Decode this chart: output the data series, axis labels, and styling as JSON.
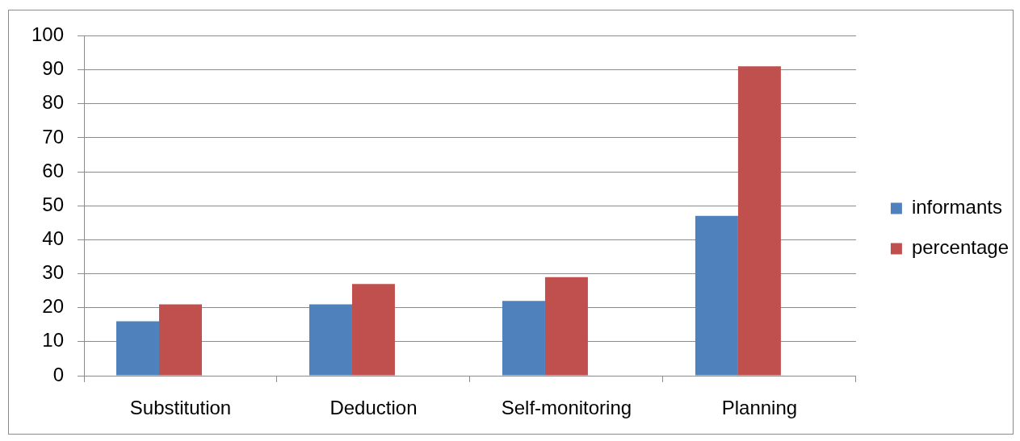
{
  "chart_data": {
    "type": "bar",
    "categories": [
      "Substitution",
      "Deduction",
      "Self-monitoring",
      "Planning"
    ],
    "series": [
      {
        "name": "informants",
        "color": "#4f81bd",
        "values": [
          16,
          21,
          22,
          47
        ]
      },
      {
        "name": "percentage",
        "color": "#c0504d",
        "values": [
          21,
          27,
          29,
          91
        ]
      }
    ],
    "ylim": [
      0,
      100
    ],
    "yticks": [
      0,
      10,
      20,
      30,
      40,
      50,
      60,
      70,
      80,
      90,
      100
    ],
    "grid": "y",
    "legend": "right"
  }
}
